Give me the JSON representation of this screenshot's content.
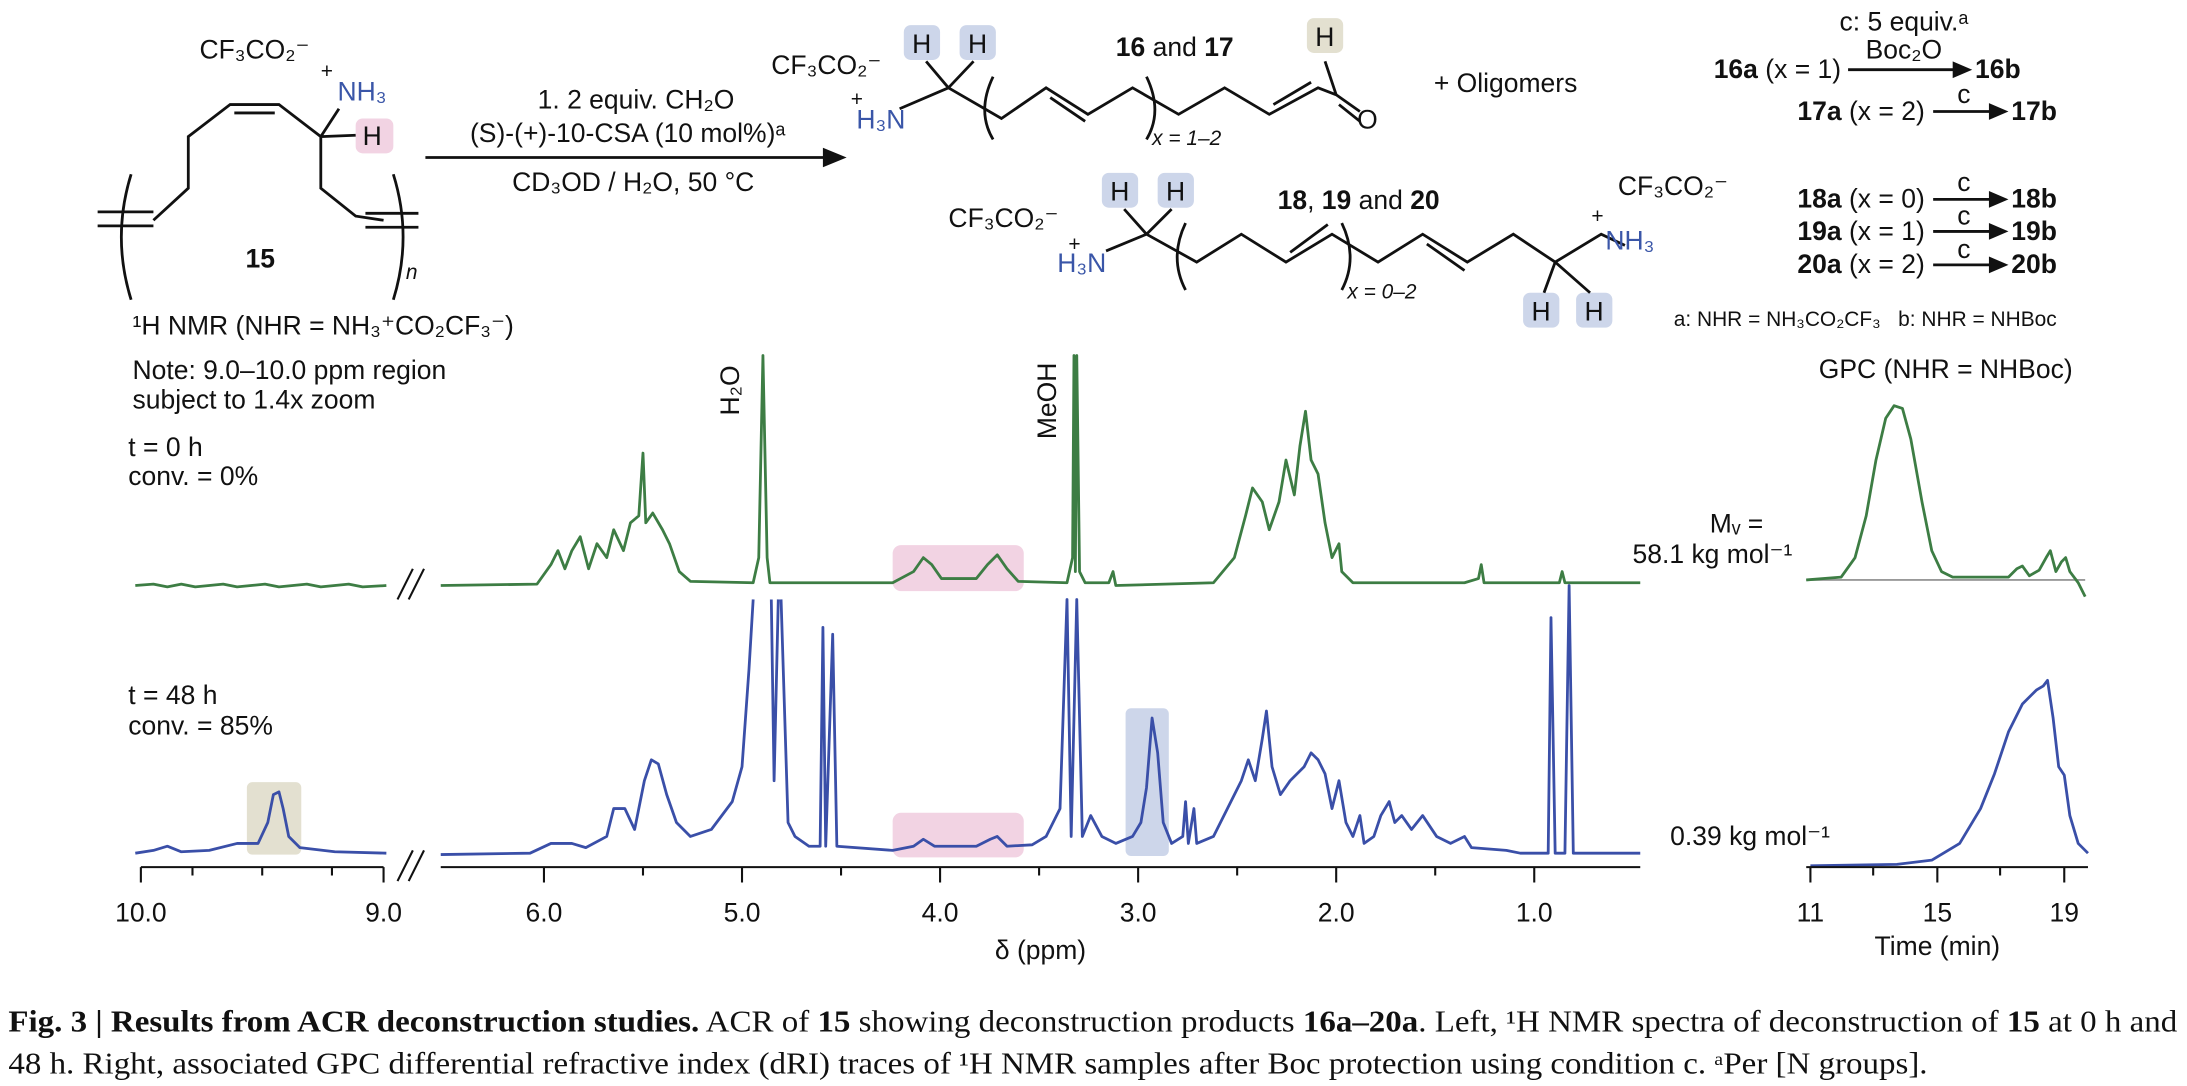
{
  "scheme": {
    "reactant": {
      "counterion": "CF₃CO₂⁻",
      "plus": "+",
      "amine": "NH₃",
      "h": "H",
      "label": "15",
      "repeat": "n"
    },
    "conditions": [
      "1. 2 equiv. CH₂O",
      "(S)-(+)-10-CSA (10 mol%)ᵃ",
      "CD₃OD / H₂O, 50 °C"
    ],
    "product_aldehyde": {
      "counterion": "CF₃CO₂⁻",
      "plus": "+",
      "amine": "H₃N",
      "h": [
        "H",
        "H",
        "H"
      ],
      "label": [
        "16",
        " and ",
        "17"
      ],
      "repeat": "x = 1–2",
      "oxygen": "O"
    },
    "oligomers": "+ Oligomers",
    "product_diamine": {
      "counterions": [
        "CF₃CO₂⁻",
        "CF₃CO₂⁻"
      ],
      "plus": [
        "+",
        "+"
      ],
      "amines": [
        "H₃N",
        "NH₃"
      ],
      "h": [
        "H",
        "H",
        "H",
        "H"
      ],
      "label": [
        "18",
        ", ",
        "19",
        " and ",
        "20"
      ],
      "repeat": "x = 0–2"
    },
    "protection": {
      "reagent": [
        "c: 5 equiv.ᵃ",
        "Boc₂O"
      ],
      "rows": [
        {
          "start": "16a",
          "count": " (x = 1)",
          "product": "16b"
        },
        {
          "start": "17a",
          "count": " (x = 2)",
          "reagent": "c",
          "product": "17b"
        },
        {
          "start": "18a",
          "count": " (x = 0)",
          "reagent": "c",
          "product": "18b"
        },
        {
          "start": "19a",
          "count": " (x = 1)",
          "reagent": "c",
          "product": "19b"
        },
        {
          "start": "20a",
          "count": " (x = 2)",
          "reagent": "c",
          "product": "20b"
        }
      ],
      "legend": "a: NHR = NH₃CO₂CF₃   b: NHR = NHBoc"
    }
  },
  "nmr": {
    "title": "¹H NMR (NHR = NH₃⁺CO₂CF₃⁻)",
    "note": [
      "Note: 9.0–10.0 ppm region",
      "subject to 1.4x zoom"
    ],
    "traces": [
      {
        "time": "t = 0 h",
        "conversion": "conv. = 0%"
      },
      {
        "time": "t = 48 h",
        "conversion": "conv. = 85%"
      }
    ],
    "peaks": [
      "H₂O",
      "MeOH"
    ],
    "xticks_zoom": [
      "10.0",
      "9.0"
    ],
    "xticks": [
      "6.0",
      "5.0",
      "4.0",
      "3.0",
      "2.0",
      "1.0"
    ],
    "xlabel": "δ (ppm)"
  },
  "gpc": {
    "title": "GPC (NHR = NHBoc)",
    "mv": "Mᵥ =",
    "masses": [
      "58.1 kg mol⁻¹",
      "0.39 kg mol⁻¹"
    ],
    "xticks": [
      "11",
      "15",
      "19"
    ],
    "xlabel": "Time (min)"
  },
  "caption": {
    "label": "Fig. 3 | Results from ACR deconstruction studies.",
    "line1": [
      " ACR of ",
      "15",
      " showing deconstruction products ",
      "16a–20a",
      ". Left, ¹H NMR spectra of deconstruction of ",
      "15",
      " at 0 h and"
    ],
    "line2": "48 h. Right, associated GPC differential refractive index (dRI) traces of ¹H NMR samples after Boc protection using condition c. ᵃPer [N groups]."
  }
}
